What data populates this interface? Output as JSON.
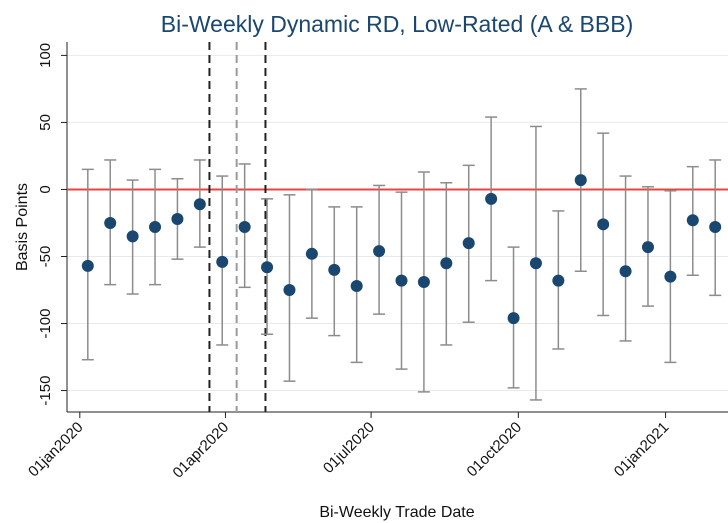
{
  "chart_data": {
    "type": "errorbar",
    "title": "Bi-Weekly Dynamic RD, Low-Rated (A & BBB)",
    "x_label": "Bi-Weekly Trade Date",
    "y_label": "Basis Points",
    "x": [
      "2020-01-06",
      "2020-01-20",
      "2020-02-03",
      "2020-02-17",
      "2020-03-02",
      "2020-03-16",
      "2020-03-30",
      "2020-04-13",
      "2020-04-27",
      "2020-05-11",
      "2020-05-25",
      "2020-06-08",
      "2020-06-22",
      "2020-07-06",
      "2020-07-20",
      "2020-08-03",
      "2020-08-17",
      "2020-08-31",
      "2020-09-14",
      "2020-09-28",
      "2020-10-12",
      "2020-10-26",
      "2020-11-09",
      "2020-11-23",
      "2020-12-07",
      "2020-12-21",
      "2021-01-04",
      "2021-01-18",
      "2021-02-01"
    ],
    "series": [
      {
        "color": "#1a476f",
        "error_color": "#8c8c8c",
        "values": [
          -57,
          -25,
          -35,
          -28,
          -22,
          -11,
          -54,
          -28,
          -58,
          -75,
          -48,
          -60,
          -72,
          -46,
          -68,
          -69,
          -55,
          -40,
          -7,
          -96,
          -55,
          -68,
          7,
          -26,
          -61,
          -43,
          -65,
          -23,
          -28
        ],
        "ci_high": [
          15,
          22,
          7,
          15,
          8,
          22,
          10,
          19,
          -7,
          -4,
          0,
          -13,
          -13,
          3,
          -2,
          13,
          5,
          18,
          54,
          -43,
          47,
          -16,
          75,
          42,
          10,
          2,
          -1,
          17,
          22
        ],
        "ci_low": [
          -127,
          -71,
          -78,
          -71,
          -52,
          -43,
          -116,
          -73,
          -108,
          -143,
          -96,
          -109,
          -129,
          -93,
          -134,
          -151,
          -116,
          -99,
          -68,
          -148,
          -157,
          -119,
          -61,
          -94,
          -113,
          -87,
          -129,
          -64,
          -79
        ]
      }
    ],
    "hline": {
      "value": 0,
      "color": "#e8433f"
    },
    "vlines": [
      {
        "x": "2020-03-22",
        "color": "#222222"
      },
      {
        "x": "2020-04-08",
        "color": "#9a9a9a"
      },
      {
        "x": "2020-04-26",
        "color": "#222222"
      }
    ],
    "xlim": [
      "2019-12-24",
      "2021-02-09"
    ],
    "xticks": [
      {
        "value": "2020-01-01",
        "label": "01jan2020"
      },
      {
        "value": "2020-04-01",
        "label": "01apr2020"
      },
      {
        "value": "2020-07-01",
        "label": "01jul2020"
      },
      {
        "value": "2020-10-01",
        "label": "01oct2020"
      },
      {
        "value": "2021-01-01",
        "label": "01jan2021"
      }
    ],
    "ylim": [
      -166,
      110
    ],
    "yticks": [
      -150,
      -100,
      -50,
      0,
      50,
      100
    ],
    "grid": true
  }
}
